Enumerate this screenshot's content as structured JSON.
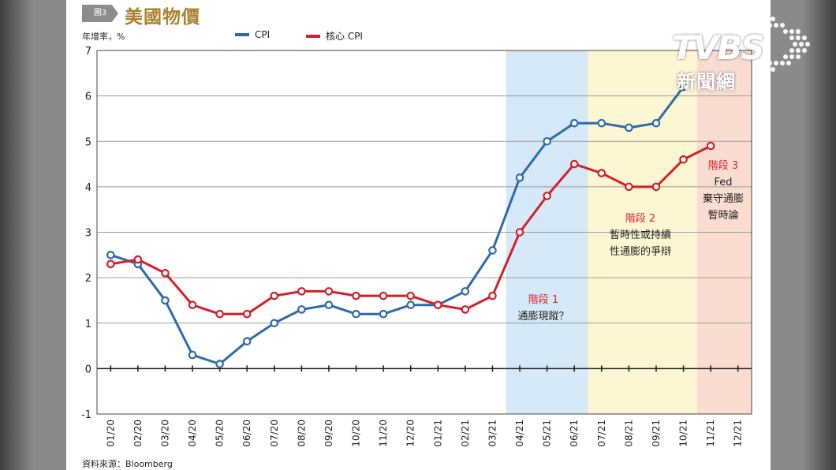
{
  "header": {
    "figure_tag": "圖3",
    "title": "美國物價"
  },
  "unit_label": "年增率，%",
  "legend": [
    {
      "name": "CPI",
      "color": "#2f6aa8"
    },
    {
      "name": "核心 CPI",
      "color": "#d31f2a"
    }
  ],
  "source": "資料來源：Bloomberg",
  "logo": {
    "name": "TVBS",
    "subtitle": "新聞網"
  },
  "chart_data": {
    "type": "line",
    "categories": [
      "01/20",
      "02/20",
      "03/20",
      "04/20",
      "05/20",
      "06/20",
      "07/20",
      "08/20",
      "09/20",
      "10/20",
      "11/20",
      "12/20",
      "01/21",
      "02/21",
      "03/21",
      "04/21",
      "05/21",
      "06/21",
      "07/21",
      "08/21",
      "09/21",
      "10/21",
      "11/21",
      "12/21"
    ],
    "series": [
      {
        "name": "CPI",
        "color": "#2f6aa8",
        "values": [
          2.5,
          2.3,
          1.5,
          0.3,
          0.1,
          0.6,
          1.0,
          1.3,
          1.4,
          1.2,
          1.2,
          1.4,
          1.4,
          1.7,
          2.6,
          4.2,
          5.0,
          5.4,
          5.4,
          5.3,
          5.4,
          6.2,
          null,
          null
        ]
      },
      {
        "name": "核心 CPI",
        "color": "#d31f2a",
        "values": [
          2.3,
          2.4,
          2.1,
          1.4,
          1.2,
          1.2,
          1.6,
          1.7,
          1.7,
          1.6,
          1.6,
          1.6,
          1.4,
          1.3,
          1.6,
          3.0,
          3.8,
          4.5,
          4.3,
          4.0,
          4.0,
          4.6,
          4.9,
          null
        ]
      }
    ],
    "ylim": [
      -1,
      7
    ],
    "yticks": [
      "-1",
      "0",
      "1",
      "2",
      "3",
      "4",
      "5",
      "6",
      "7"
    ],
    "grid": true,
    "stages": [
      {
        "title": "階段 1",
        "lines": [
          "通膨現蹤？"
        ],
        "start": "04/21",
        "end": "06/21",
        "color": "#d5e9f8"
      },
      {
        "title": "階段 2",
        "lines": [
          "暫時性或持續",
          "性通膨的爭辯"
        ],
        "start": "07/21",
        "end": "10/21",
        "color": "#fdf6d2"
      },
      {
        "title": "階段 3",
        "lines": [
          "Fed",
          "棄守通膨",
          "暫時論"
        ],
        "start": "11/21",
        "end": "12/21",
        "color": "#f9ddd0"
      }
    ]
  }
}
